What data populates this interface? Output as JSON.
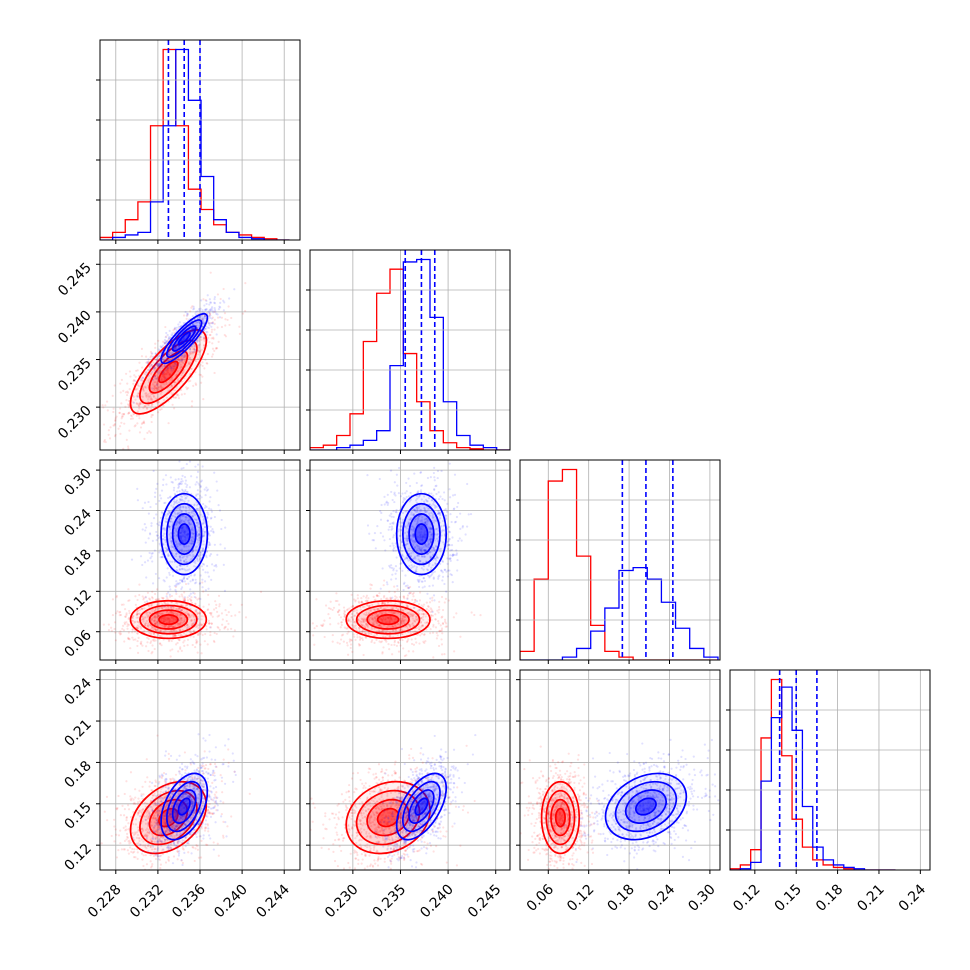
{
  "colors": {
    "series_a": "#ff0000",
    "series_b": "#0000ff",
    "grid": "#b0b0b0"
  },
  "chart_data": {
    "type": "corner",
    "grid": true,
    "series": [
      {
        "color": "#ff0000",
        "mean": [
          0.233,
          0.2337,
          0.078,
          0.14
        ],
        "std": [
          0.0018,
          0.0022,
          0.014,
          0.013
        ],
        "corr": [
          [
            1,
            0.75,
            0,
            0.35
          ],
          [
            0.75,
            1,
            0,
            0.2
          ],
          [
            0,
            0,
            1,
            0
          ],
          [
            0.35,
            0.2,
            0,
            1
          ]
        ]
      },
      {
        "color": "#0000ff",
        "mean": [
          0.2345,
          0.2372,
          0.205,
          0.148
        ],
        "std": [
          0.0011,
          0.0013,
          0.03,
          0.012
        ],
        "corr": [
          [
            1,
            0.85,
            0,
            0.45
          ],
          [
            0.85,
            1,
            0,
            0.55
          ],
          [
            0,
            0,
            1,
            0.3
          ],
          [
            0.45,
            0.55,
            0.3,
            1
          ]
        ]
      }
    ],
    "quantile_lines": [
      [
        0.233,
        0.2345,
        0.236
      ],
      [
        0.2355,
        0.2372,
        0.2386
      ],
      [
        0.17,
        0.205,
        0.245
      ],
      [
        0.138,
        0.15,
        0.165
      ]
    ],
    "histograms": [
      {
        "edges": [
          0.2265,
          0.2277,
          0.2289,
          0.2301,
          0.2313,
          0.2325,
          0.2337,
          0.2349,
          0.2361,
          0.2373,
          0.2385,
          0.2397,
          0.2409,
          0.2421,
          0.2433,
          0.2445
        ],
        "red": [
          0.01,
          0.03,
          0.08,
          0.15,
          0.45,
          0.75,
          0.45,
          0.2,
          0.12,
          0.06,
          0.03,
          0.02,
          0.01,
          0.005,
          0.0
        ],
        "blue": [
          0.0,
          0.01,
          0.02,
          0.03,
          0.15,
          0.45,
          0.75,
          0.55,
          0.25,
          0.08,
          0.03,
          0.01,
          0.005,
          0.0,
          0.0
        ]
      },
      {
        "edges": [
          0.2255,
          0.2269,
          0.2283,
          0.2297,
          0.2311,
          0.2325,
          0.2339,
          0.2353,
          0.2367,
          0.2381,
          0.2395,
          0.2409,
          0.2423,
          0.2437,
          0.2451,
          0.2465
        ],
        "red": [
          0.01,
          0.02,
          0.06,
          0.15,
          0.45,
          0.65,
          0.75,
          0.4,
          0.2,
          0.08,
          0.03,
          0.01,
          0.005,
          0.0,
          0.0
        ],
        "blue": [
          0.0,
          0.0,
          0.01,
          0.02,
          0.04,
          0.08,
          0.35,
          0.78,
          0.79,
          0.55,
          0.2,
          0.06,
          0.02,
          0.01,
          0.0
        ]
      },
      {
        "edges": [
          0.018,
          0.039,
          0.06,
          0.081,
          0.102,
          0.123,
          0.144,
          0.165,
          0.186,
          0.207,
          0.228,
          0.249,
          0.27,
          0.291,
          0.312
        ],
        "red": [
          0.03,
          0.28,
          0.62,
          0.66,
          0.36,
          0.12,
          0.03,
          0.01,
          0.0,
          0.0,
          0.0,
          0.0,
          0.0,
          0.0
        ],
        "blue": [
          0.0,
          0.0,
          0.0,
          0.01,
          0.04,
          0.1,
          0.18,
          0.31,
          0.32,
          0.28,
          0.2,
          0.11,
          0.04,
          0.01
        ]
      },
      {
        "edges": [
          0.102,
          0.1095,
          0.117,
          0.1245,
          0.132,
          0.1395,
          0.147,
          0.1545,
          0.162,
          0.1695,
          0.177,
          0.1845,
          0.192,
          0.1995,
          0.207,
          0.2145,
          0.222
        ],
        "red": [
          0.005,
          0.02,
          0.08,
          0.52,
          0.75,
          0.45,
          0.2,
          0.09,
          0.04,
          0.02,
          0.01,
          0.005,
          0.0,
          0.0,
          0.0,
          0.0
        ],
        "blue": [
          0.0,
          0.005,
          0.03,
          0.35,
          0.6,
          0.72,
          0.55,
          0.25,
          0.09,
          0.04,
          0.02,
          0.01,
          0.005,
          0.0,
          0.0,
          0.0
        ]
      }
    ],
    "axes": [
      {
        "lim": [
          0.2265,
          0.2455
        ],
        "ticks": [
          0.228,
          0.232,
          0.236,
          0.24,
          0.244
        ],
        "tick_labels": [
          "0.228",
          "0.232",
          "0.236",
          "0.240",
          "0.244"
        ]
      },
      {
        "lim": [
          0.2255,
          0.2465
        ],
        "ticks": [
          0.23,
          0.235,
          0.24,
          0.245
        ],
        "tick_labels": [
          "0.230",
          "0.235",
          "0.240",
          "0.245"
        ]
      },
      {
        "lim": [
          0.018,
          0.315
        ],
        "ticks": [
          0.06,
          0.12,
          0.18,
          0.24,
          0.3
        ],
        "tick_labels": [
          "0.06",
          "0.12",
          "0.18",
          "0.24",
          "0.30"
        ]
      },
      {
        "lim": [
          0.102,
          0.247
        ],
        "ticks": [
          0.12,
          0.15,
          0.18,
          0.21,
          0.24
        ],
        "tick_labels": [
          "0.12",
          "0.15",
          "0.18",
          "0.21",
          "0.24"
        ]
      }
    ]
  }
}
